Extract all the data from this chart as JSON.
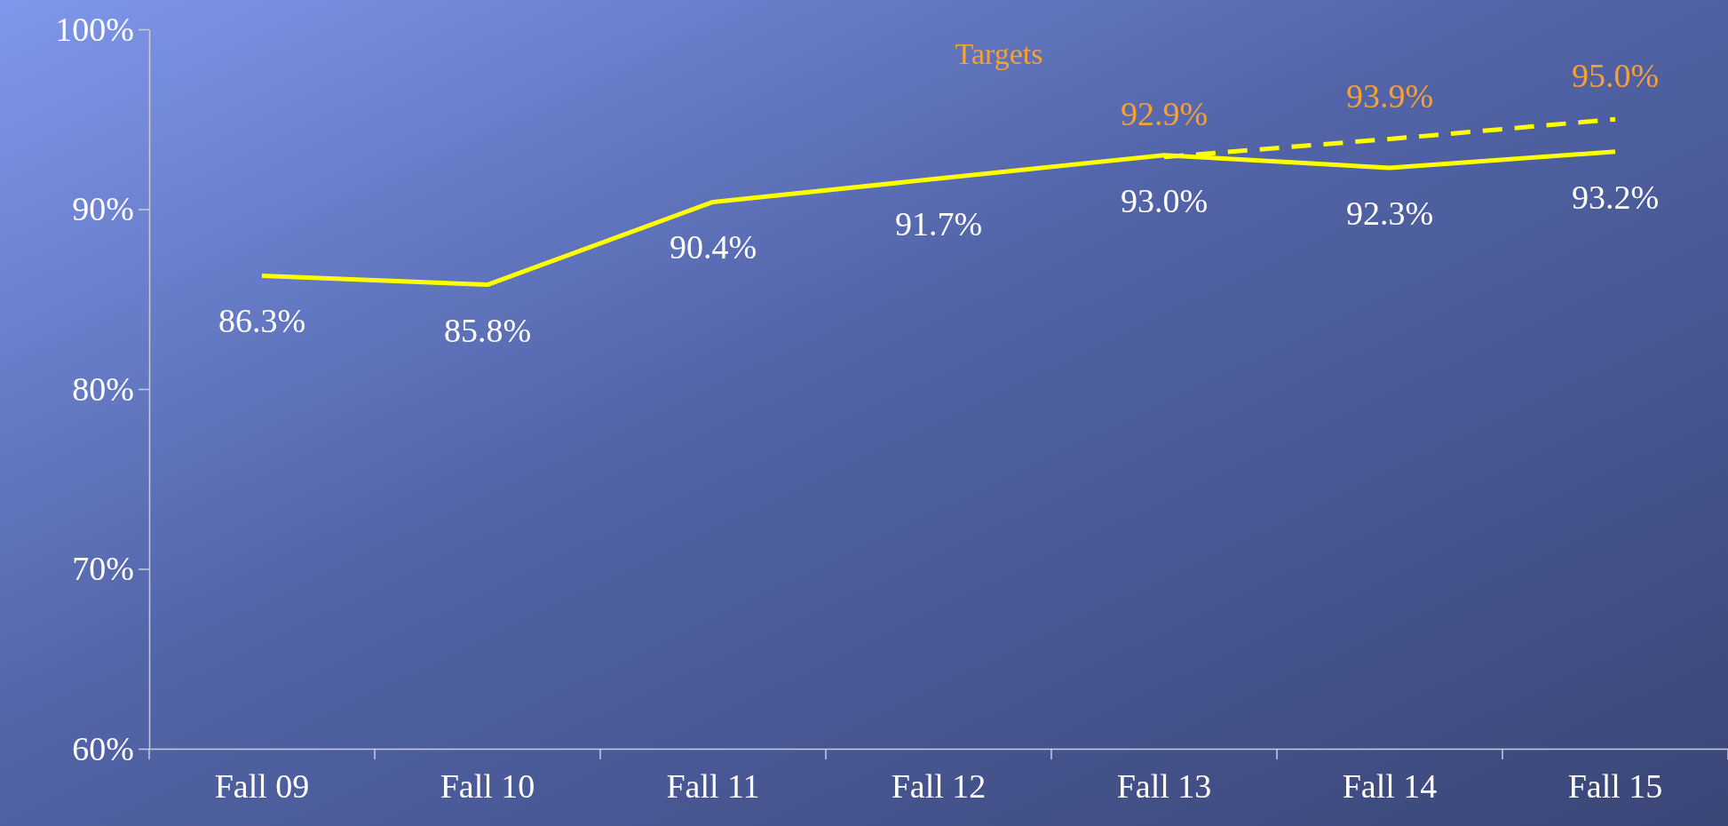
{
  "chart_data": {
    "type": "line",
    "categories": [
      "Fall 09",
      "Fall 10",
      "Fall 11",
      "Fall 12",
      "Fall 13",
      "Fall 14",
      "Fall 15"
    ],
    "series": [
      {
        "color": "#ffff00",
        "values": [
          86.3,
          85.8,
          90.4,
          91.7,
          93.0,
          92.3,
          93.2
        ],
        "value_labels": [
          "86.3%",
          "85.8%",
          "90.4%",
          "91.7%",
          "93.0%",
          "92.3%",
          "93.2%"
        ]
      },
      {
        "name": "Targets",
        "color": "#ffff00",
        "line_style": "dashed",
        "values": [
          null,
          null,
          null,
          null,
          92.9,
          93.9,
          95.0
        ],
        "value_labels": [
          null,
          null,
          null,
          null,
          "92.9%",
          "93.9%",
          "95.0%"
        ]
      }
    ],
    "ylim": [
      60,
      100
    ],
    "yticks": [
      {
        "value": 60,
        "label": "60%"
      },
      {
        "value": 70,
        "label": "70%"
      },
      {
        "value": 80,
        "label": "80%"
      },
      {
        "value": 90,
        "label": "90%"
      },
      {
        "value": 100,
        "label": "100%"
      }
    ],
    "grid": false,
    "marker": "none"
  }
}
